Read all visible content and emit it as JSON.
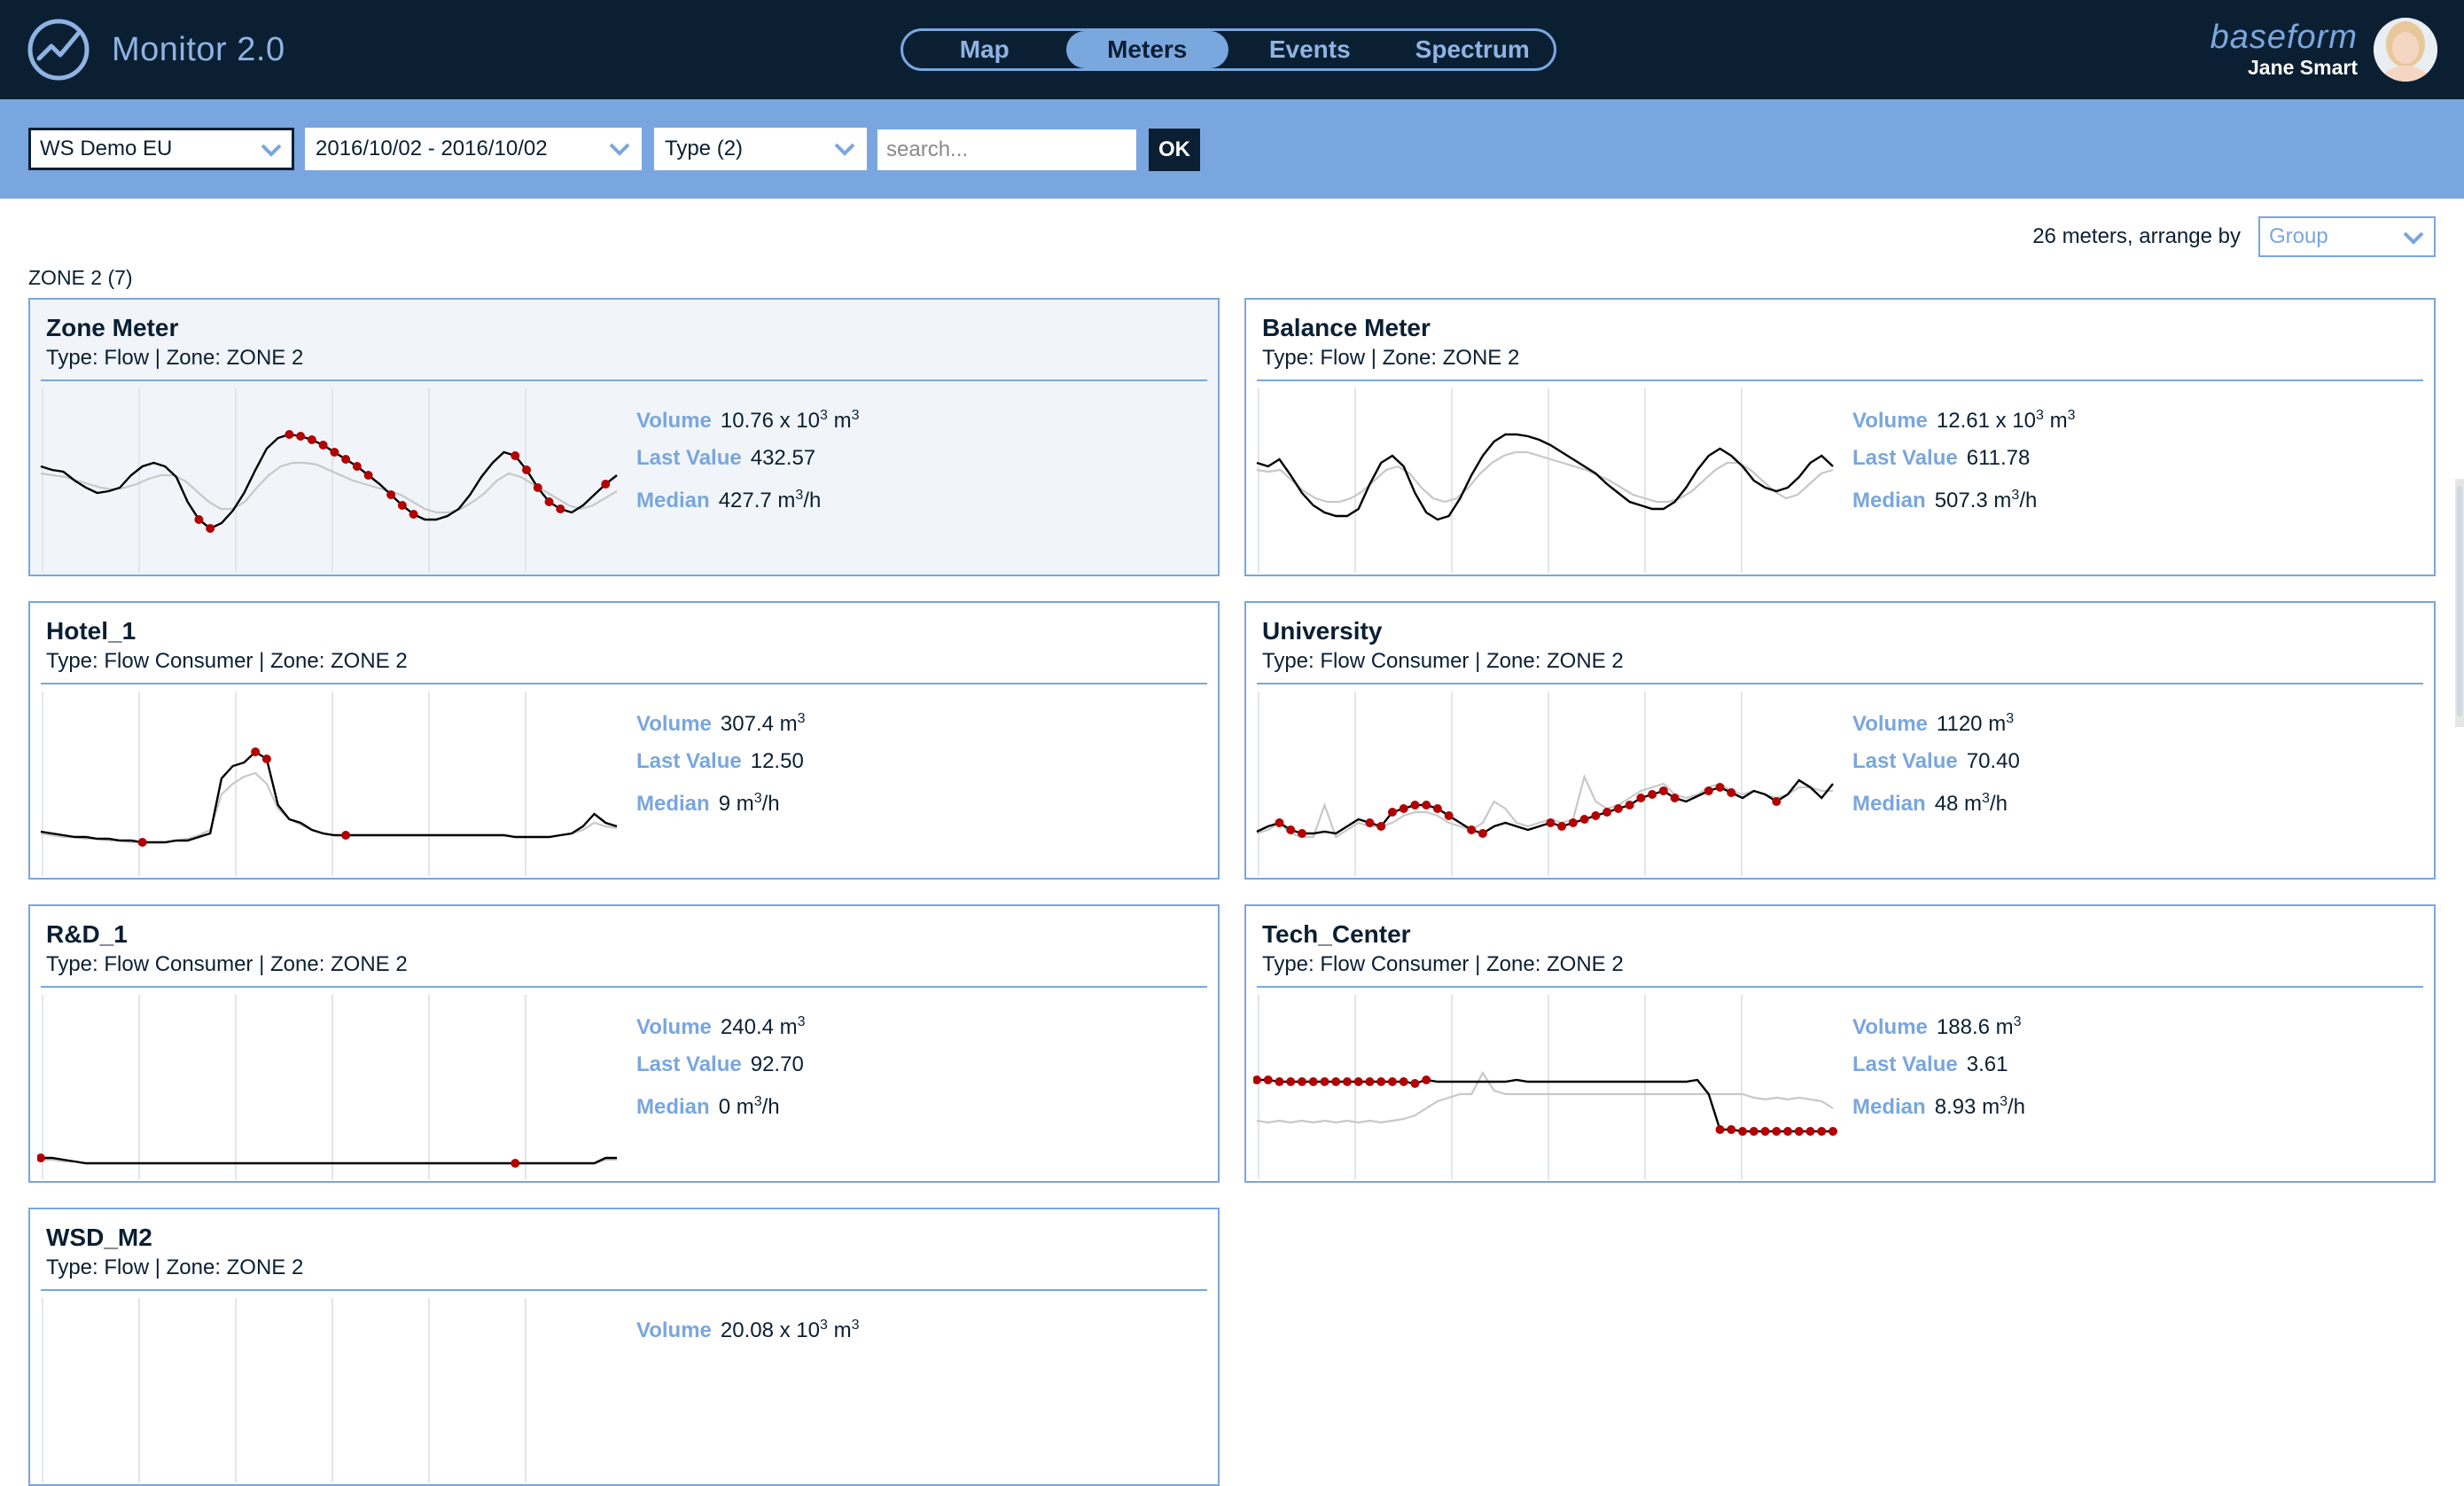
{
  "app": {
    "title": "Monitor 2.0"
  },
  "nav": {
    "tabs": [
      {
        "label": "Map"
      },
      {
        "label": "Meters",
        "active": true
      },
      {
        "label": "Events"
      },
      {
        "label": "Spectrum"
      }
    ]
  },
  "user": {
    "company": "baseform",
    "name": "Jane Smart"
  },
  "filters": {
    "network": "WS Demo EU",
    "date_range": "2016/10/02 - 2016/10/02",
    "type": "Type (2)",
    "search_placeholder": "search...",
    "ok_label": "OK"
  },
  "summary": {
    "text": "26 meters, arrange by",
    "arrange_value": "Group"
  },
  "zone": {
    "heading": "ZONE 2 (7)"
  },
  "colors": {
    "navy": "#0b1f33",
    "accent": "#79a6de",
    "alarm": "#b30000",
    "trace": "#c8c8c8"
  },
  "meters": [
    {
      "name": "Zone Meter",
      "subtitle": "Type: Flow | Zone: ZONE 2",
      "selected": true,
      "volume": "10.76 x 10",
      "volume_exp": "3",
      "volume_unit": "m",
      "volume_unit_exp": "3",
      "last_value": "432.57",
      "median": "427.7 m",
      "median_exp": "3",
      "median_unit": "/h",
      "series": [
        60,
        58,
        57,
        52,
        48,
        45,
        46,
        48,
        55,
        60,
        62,
        60,
        54,
        40,
        30,
        25,
        28,
        35,
        45,
        58,
        70,
        76,
        78,
        77,
        75,
        72,
        68,
        64,
        60,
        55,
        50,
        44,
        38,
        33,
        30,
        30,
        32,
        36,
        44,
        54,
        62,
        68,
        66,
        58,
        48,
        40,
        36,
        34,
        38,
        44,
        50,
        55
      ],
      "reference": [
        56,
        55,
        54,
        52,
        50,
        48,
        47,
        48,
        50,
        53,
        55,
        55,
        52,
        46,
        40,
        36,
        36,
        40,
        48,
        55,
        60,
        62,
        62,
        61,
        58,
        55,
        52,
        50,
        48,
        46,
        44,
        40,
        36,
        34,
        34,
        36,
        40,
        45,
        52,
        56,
        54,
        50,
        46,
        42,
        38,
        36,
        38,
        42,
        46
      ],
      "alarms": [
        14,
        15,
        22,
        23,
        24,
        25,
        26,
        27,
        28,
        29,
        31,
        32,
        33,
        42,
        43,
        44,
        45,
        46,
        50
      ]
    },
    {
      "name": "Balance Meter",
      "subtitle": "Type: Flow | Zone: ZONE 2",
      "selected": false,
      "volume": "12.61 x 10",
      "volume_exp": "3",
      "volume_unit": "m",
      "volume_unit_exp": "3",
      "last_value": "611.78",
      "median": "507.3 m",
      "median_exp": "3",
      "median_unit": "/h",
      "series": [
        62,
        60,
        64,
        55,
        45,
        38,
        34,
        32,
        32,
        36,
        50,
        62,
        66,
        60,
        45,
        34,
        30,
        32,
        42,
        55,
        66,
        74,
        78,
        78,
        77,
        75,
        72,
        68,
        64,
        60,
        56,
        50,
        45,
        40,
        38,
        36,
        36,
        40,
        48,
        58,
        66,
        70,
        66,
        60,
        52,
        48,
        46,
        48,
        54,
        62,
        66,
        60
      ],
      "reference": [
        58,
        57,
        58,
        52,
        46,
        42,
        40,
        40,
        42,
        46,
        52,
        58,
        60,
        56,
        48,
        42,
        40,
        42,
        48,
        56,
        62,
        66,
        68,
        68,
        66,
        64,
        62,
        60,
        58,
        55,
        52,
        48,
        44,
        42,
        40,
        40,
        42,
        46,
        52,
        58,
        62,
        62,
        58,
        52,
        46,
        42,
        44,
        50,
        56,
        58
      ],
      "alarms": []
    },
    {
      "name": "Hotel_1",
      "subtitle": "Type: Flow Consumer | Zone: ZONE 2",
      "selected": false,
      "volume": "307.4",
      "volume_exp": "",
      "volume_unit": "m",
      "volume_unit_exp": "3",
      "last_value": "12.50",
      "median": "9 m",
      "median_exp": "3",
      "median_unit": "/h",
      "series": [
        25,
        24,
        23,
        22,
        22,
        21,
        21,
        20,
        20,
        19,
        19,
        19,
        20,
        20,
        22,
        24,
        55,
        62,
        64,
        70,
        66,
        40,
        32,
        30,
        26,
        24,
        23,
        23,
        23,
        23,
        23,
        23,
        23,
        23,
        23,
        23,
        23,
        23,
        23,
        23,
        23,
        23,
        22,
        22,
        22,
        22,
        23,
        24,
        28,
        35,
        30,
        28
      ],
      "reference": [
        24,
        23,
        22,
        22,
        21,
        21,
        20,
        20,
        19,
        19,
        19,
        19,
        20,
        21,
        23,
        26,
        46,
        52,
        56,
        58,
        52,
        38,
        32,
        29,
        26,
        24,
        23,
        23,
        23,
        23,
        23,
        23,
        23,
        23,
        23,
        23,
        23,
        23,
        23,
        23,
        23,
        23,
        22,
        22,
        22,
        22,
        23,
        24,
        26,
        30,
        28,
        27
      ],
      "alarms": [
        9,
        19,
        20,
        27
      ]
    },
    {
      "name": "University",
      "subtitle": "Type: Flow Consumer | Zone: ZONE 2",
      "selected": false,
      "volume": "1120",
      "volume_exp": "",
      "volume_unit": "m",
      "volume_unit_exp": "3",
      "last_value": "70.40",
      "median": "48 m",
      "median_exp": "3",
      "median_unit": "/h",
      "series": [
        25,
        28,
        30,
        26,
        24,
        24,
        25,
        24,
        28,
        32,
        30,
        28,
        36,
        38,
        40,
        40,
        38,
        34,
        30,
        26,
        24,
        28,
        30,
        28,
        26,
        28,
        30,
        28,
        30,
        32,
        34,
        36,
        38,
        40,
        44,
        46,
        48,
        44,
        42,
        45,
        48,
        50,
        47,
        44,
        48,
        46,
        42,
        46,
        54,
        50,
        44,
        52
      ],
      "reference": [
        24,
        26,
        30,
        24,
        22,
        22,
        40,
        22,
        26,
        30,
        28,
        28,
        30,
        34,
        36,
        36,
        34,
        30,
        28,
        26,
        30,
        42,
        38,
        30,
        28,
        30,
        32,
        30,
        32,
        56,
        42,
        38,
        40,
        44,
        48,
        50,
        52,
        46,
        44,
        46,
        50,
        52,
        48,
        46,
        48,
        46,
        44,
        46,
        50,
        50,
        48,
        48
      ],
      "alarms": [
        2,
        3,
        4,
        10,
        11,
        12,
        13,
        14,
        15,
        16,
        17,
        19,
        20,
        26,
        27,
        28,
        29,
        30,
        31,
        32,
        33,
        34,
        35,
        36,
        37,
        40,
        41,
        42,
        46
      ]
    },
    {
      "name": "R&D_1",
      "subtitle": "Type: Flow Consumer | Zone: ZONE 2",
      "selected": false,
      "volume": "240.4",
      "volume_exp": "",
      "volume_unit": "m",
      "volume_unit_exp": "3",
      "last_value": "92.70",
      "median": "0 m",
      "median_exp": "3",
      "median_unit": "/h",
      "series": [
        12,
        12,
        11,
        10,
        9,
        9,
        9,
        9,
        9,
        9,
        9,
        9,
        9,
        9,
        9,
        9,
        9,
        9,
        9,
        9,
        9,
        9,
        9,
        9,
        9,
        9,
        9,
        9,
        9,
        9,
        9,
        9,
        9,
        9,
        9,
        9,
        9,
        9,
        9,
        9,
        9,
        9,
        9,
        9,
        9,
        9,
        9,
        9,
        9,
        9,
        12,
        12
      ],
      "reference": [
        11,
        11,
        10,
        10,
        9,
        9,
        9,
        9,
        9,
        9,
        9,
        9,
        9,
        9,
        9,
        9,
        9,
        9,
        9,
        9,
        9,
        9,
        9,
        9,
        9,
        9,
        9,
        9,
        9,
        9,
        9,
        9,
        9,
        9,
        9,
        9,
        9,
        9,
        9,
        9,
        9,
        9,
        9,
        9,
        9,
        9,
        9,
        9,
        9,
        9,
        11,
        11
      ],
      "alarms": [
        0,
        42
      ]
    },
    {
      "name": "Tech_Center",
      "subtitle": "Type: Flow Consumer | Zone: ZONE 2",
      "selected": false,
      "volume": "188.6",
      "volume_exp": "",
      "volume_unit": "m",
      "volume_unit_exp": "3",
      "last_value": "3.61",
      "median": "8.93 m",
      "median_exp": "3",
      "median_unit": "/h",
      "series": [
        56,
        56,
        55,
        55,
        55,
        55,
        55,
        55,
        55,
        55,
        55,
        55,
        55,
        55,
        54,
        56,
        55,
        55,
        55,
        55,
        55,
        55,
        55,
        56,
        55,
        55,
        55,
        55,
        55,
        55,
        55,
        55,
        55,
        55,
        55,
        55,
        55,
        55,
        55,
        56,
        48,
        28,
        28,
        27,
        27,
        27,
        27,
        27,
        27,
        27,
        27,
        27
      ],
      "reference": [
        33,
        32,
        33,
        32,
        33,
        32,
        33,
        32,
        33,
        32,
        33,
        32,
        33,
        34,
        36,
        40,
        44,
        46,
        48,
        48,
        60,
        50,
        48,
        48,
        48,
        48,
        48,
        48,
        48,
        48,
        48,
        48,
        48,
        48,
        48,
        48,
        48,
        48,
        48,
        48,
        48,
        48,
        48,
        48,
        46,
        45,
        46,
        45,
        46,
        45,
        44,
        40
      ],
      "alarms": [
        0,
        1,
        2,
        3,
        4,
        5,
        6,
        7,
        8,
        9,
        10,
        11,
        12,
        13,
        14,
        15,
        41,
        42,
        43,
        44,
        45,
        46,
        47,
        48,
        49,
        50,
        51
      ]
    },
    {
      "name": "WSD_M2",
      "subtitle": "Type: Flow | Zone: ZONE 2",
      "selected": false,
      "volume": "20.08 x 10",
      "volume_exp": "3",
      "volume_unit": "m",
      "volume_unit_exp": "3",
      "last_value": "",
      "median": "",
      "median_exp": "",
      "median_unit": "",
      "series": [],
      "reference": [],
      "alarms": []
    }
  ]
}
